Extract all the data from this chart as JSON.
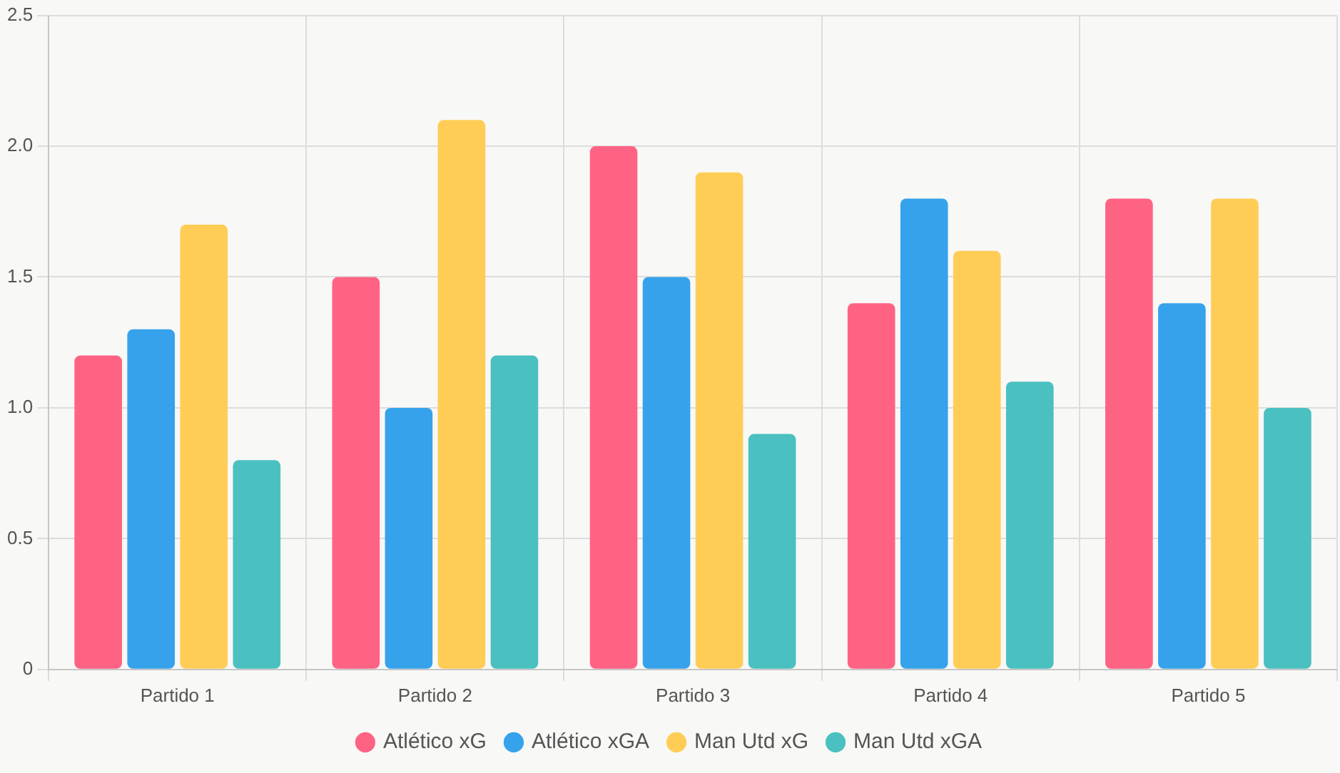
{
  "chart_data": {
    "type": "bar",
    "categories": [
      "Partido 1",
      "Partido 2",
      "Partido 3",
      "Partido 4",
      "Partido 5"
    ],
    "series": [
      {
        "name": "Atlético xG",
        "color": "#ff6384",
        "values": [
          1.2,
          1.5,
          2.0,
          1.4,
          1.8
        ]
      },
      {
        "name": "Atlético xGA",
        "color": "#36a2eb",
        "values": [
          1.3,
          1.0,
          1.5,
          1.8,
          1.4
        ]
      },
      {
        "name": "Man Utd xG",
        "color": "#ffcd56",
        "values": [
          1.7,
          2.1,
          1.9,
          1.6,
          1.8
        ]
      },
      {
        "name": "Man Utd xGA",
        "color": "#4bc0c0",
        "values": [
          0.8,
          1.2,
          0.9,
          1.1,
          1.0
        ]
      }
    ],
    "ylim": [
      0,
      2.5
    ],
    "yticks": [
      0,
      {
        "value": 0.5,
        "label": "0.5"
      },
      {
        "value": 1,
        "label": "1.0"
      },
      {
        "value": 1.5,
        "label": "1.5"
      },
      {
        "value": 2,
        "label": "2.0"
      },
      {
        "value": 2.5,
        "label": "2.5"
      }
    ],
    "grid": true,
    "legend": "bottom"
  }
}
